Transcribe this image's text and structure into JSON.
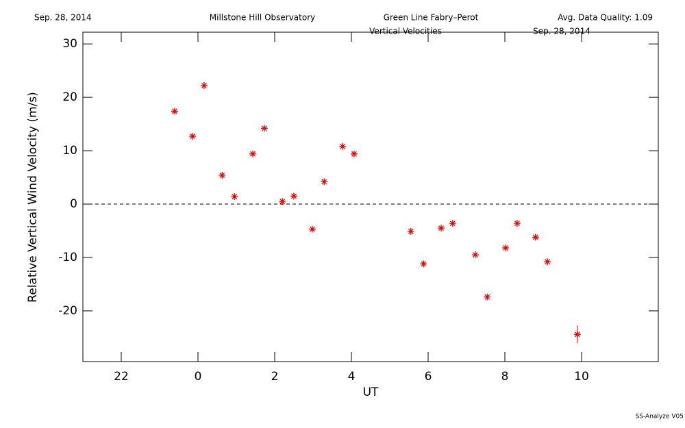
{
  "chart_data": {
    "type": "scatter",
    "header": [
      "Sep. 28, 2014",
      "Millstone Hill Observatory",
      "Green Line Fabry–Perot",
      "Avg. Data Quality: 1.09"
    ],
    "title": "Vertical Velocities",
    "subtitle": "Sep. 28, 2014",
    "footer": "SS-Analyze V05",
    "xlabel": "UT",
    "ylabel": "Relative Vertical Wind Velocity (m/s)",
    "xlim": [
      -3,
      12
    ],
    "ylim": [
      -29.5,
      32.2
    ],
    "xticks": [
      {
        "value": -2,
        "label": "22"
      },
      0,
      2,
      4,
      6,
      8,
      10
    ],
    "yticks": [
      -20,
      -10,
      0,
      10,
      20,
      30
    ],
    "hline": 0,
    "series": [
      {
        "color": "#e00000",
        "x": [
          -0.61,
          -0.14,
          0.16,
          0.63,
          0.95,
          1.43,
          1.73,
          2.2,
          2.5,
          2.98,
          3.29,
          3.77,
          4.07,
          5.55,
          5.88,
          6.34,
          6.64,
          7.23,
          7.54,
          8.02,
          8.32,
          8.8,
          9.11,
          9.89
        ],
        "values": [
          17.4,
          12.7,
          22.2,
          5.4,
          1.4,
          9.4,
          14.2,
          0.5,
          1.5,
          -4.7,
          4.2,
          10.8,
          9.4,
          -5.1,
          -11.2,
          -4.5,
          -3.6,
          -9.5,
          -17.4,
          -8.2,
          -3.6,
          -6.2,
          -10.8,
          -24.4
        ],
        "errors": [
          0.3,
          0.3,
          0.3,
          0.3,
          0.3,
          0.3,
          0.3,
          0.3,
          0.3,
          0.3,
          0.3,
          0.3,
          0.3,
          0.3,
          0.3,
          0.3,
          0.3,
          0.3,
          0.3,
          0.3,
          0.3,
          0.3,
          0.3,
          1.7
        ]
      }
    ]
  }
}
